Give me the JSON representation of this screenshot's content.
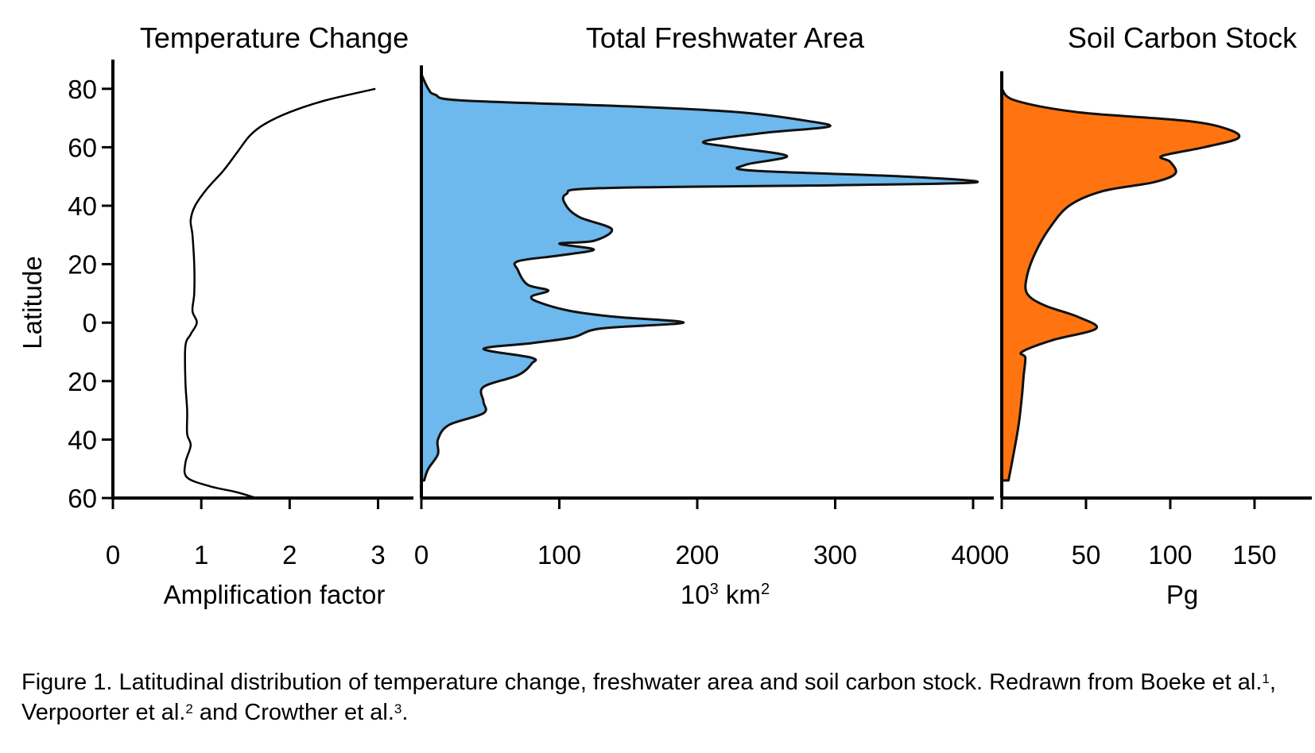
{
  "chart_data": {
    "y_axis": {
      "label": "Latitude",
      "lim": [
        -60,
        90
      ],
      "ticks": [
        80,
        60,
        40,
        20,
        0,
        -20,
        -40,
        -60
      ],
      "tick_labels": [
        "80",
        "60",
        "40",
        "20",
        "0",
        "20",
        "40",
        "60"
      ]
    },
    "panels": [
      {
        "type": "line",
        "title": "Temperature Change",
        "xlabel": "Amplification factor",
        "xlim": [
          0,
          3.4
        ],
        "xticks": [
          0,
          1,
          2,
          3
        ],
        "xtick_labels": [
          "0",
          "1",
          "2",
          "3"
        ],
        "fill": "none",
        "profile": [
          {
            "lat": 80,
            "x": 2.97
          },
          {
            "lat": 76,
            "x": 2.4
          },
          {
            "lat": 72,
            "x": 2.0
          },
          {
            "lat": 68,
            "x": 1.72
          },
          {
            "lat": 64,
            "x": 1.55
          },
          {
            "lat": 58,
            "x": 1.4
          },
          {
            "lat": 52,
            "x": 1.25
          },
          {
            "lat": 46,
            "x": 1.07
          },
          {
            "lat": 40,
            "x": 0.93
          },
          {
            "lat": 35,
            "x": 0.88
          },
          {
            "lat": 30,
            "x": 0.9
          },
          {
            "lat": 20,
            "x": 0.92
          },
          {
            "lat": 10,
            "x": 0.92
          },
          {
            "lat": 4,
            "x": 0.9
          },
          {
            "lat": 0,
            "x": 0.95
          },
          {
            "lat": -4,
            "x": 0.88
          },
          {
            "lat": -8,
            "x": 0.82
          },
          {
            "lat": -20,
            "x": 0.82
          },
          {
            "lat": -30,
            "x": 0.84
          },
          {
            "lat": -38,
            "x": 0.84
          },
          {
            "lat": -42,
            "x": 0.88
          },
          {
            "lat": -48,
            "x": 0.82
          },
          {
            "lat": -53,
            "x": 0.84
          },
          {
            "lat": -56,
            "x": 1.1
          },
          {
            "lat": -58,
            "x": 1.4
          },
          {
            "lat": -60,
            "x": 1.62
          }
        ]
      },
      {
        "type": "area",
        "title": "Total Freshwater Area",
        "xlabel": "10³  km²",
        "xlabel_base": "10",
        "xlabel_exp": "3",
        "xlabel_unit": "km",
        "xlabel_unit_exp": "2",
        "xlim": [
          0,
          415
        ],
        "xticks": [
          0,
          100,
          200,
          300,
          400
        ],
        "xtick_labels": [
          "0",
          "100",
          "200",
          "300",
          "400"
        ],
        "fill": "#6db8ec",
        "profile": [
          {
            "lat": 85,
            "x": 0
          },
          {
            "lat": 80,
            "x": 5
          },
          {
            "lat": 78,
            "x": 10
          },
          {
            "lat": 76,
            "x": 30
          },
          {
            "lat": 74,
            "x": 150
          },
          {
            "lat": 72,
            "x": 230
          },
          {
            "lat": 69,
            "x": 280
          },
          {
            "lat": 67,
            "x": 295
          },
          {
            "lat": 65,
            "x": 250
          },
          {
            "lat": 62,
            "x": 205
          },
          {
            "lat": 60,
            "x": 225
          },
          {
            "lat": 57,
            "x": 265
          },
          {
            "lat": 54,
            "x": 235
          },
          {
            "lat": 52,
            "x": 240
          },
          {
            "lat": 50,
            "x": 350
          },
          {
            "lat": 48,
            "x": 402
          },
          {
            "lat": 47,
            "x": 300
          },
          {
            "lat": 46,
            "x": 130
          },
          {
            "lat": 44,
            "x": 105
          },
          {
            "lat": 40,
            "x": 105
          },
          {
            "lat": 36,
            "x": 115
          },
          {
            "lat": 32,
            "x": 138
          },
          {
            "lat": 28,
            "x": 125
          },
          {
            "lat": 27,
            "x": 100
          },
          {
            "lat": 25,
            "x": 125
          },
          {
            "lat": 23,
            "x": 100
          },
          {
            "lat": 21,
            "x": 70
          },
          {
            "lat": 18,
            "x": 70
          },
          {
            "lat": 13,
            "x": 77
          },
          {
            "lat": 11,
            "x": 92
          },
          {
            "lat": 9,
            "x": 80
          },
          {
            "lat": 7,
            "x": 85
          },
          {
            "lat": 4,
            "x": 108
          },
          {
            "lat": 2,
            "x": 140
          },
          {
            "lat": 0,
            "x": 190
          },
          {
            "lat": -2,
            "x": 130
          },
          {
            "lat": -5,
            "x": 110
          },
          {
            "lat": -7,
            "x": 80
          },
          {
            "lat": -9,
            "x": 45
          },
          {
            "lat": -12,
            "x": 80
          },
          {
            "lat": -14,
            "x": 80
          },
          {
            "lat": -18,
            "x": 70
          },
          {
            "lat": -22,
            "x": 45
          },
          {
            "lat": -27,
            "x": 45
          },
          {
            "lat": -31,
            "x": 45
          },
          {
            "lat": -35,
            "x": 20
          },
          {
            "lat": -40,
            "x": 12
          },
          {
            "lat": -45,
            "x": 12
          },
          {
            "lat": -50,
            "x": 5
          },
          {
            "lat": -54,
            "x": 2
          }
        ]
      },
      {
        "type": "area",
        "title": "Soil Carbon Stock",
        "xlabel": "Pg",
        "xlim": [
          0,
          184
        ],
        "xticks": [
          0,
          50,
          100,
          150
        ],
        "xtick_labels": [
          "0",
          "50",
          "100",
          "150"
        ],
        "fill": "#ff7410",
        "profile": [
          {
            "lat": 80,
            "x": 0
          },
          {
            "lat": 76,
            "x": 8
          },
          {
            "lat": 72,
            "x": 45
          },
          {
            "lat": 69,
            "x": 110
          },
          {
            "lat": 66,
            "x": 135
          },
          {
            "lat": 63,
            "x": 140
          },
          {
            "lat": 60,
            "x": 120
          },
          {
            "lat": 57,
            "x": 95
          },
          {
            "lat": 55,
            "x": 100
          },
          {
            "lat": 51,
            "x": 103
          },
          {
            "lat": 48,
            "x": 90
          },
          {
            "lat": 45,
            "x": 60
          },
          {
            "lat": 40,
            "x": 40
          },
          {
            "lat": 32,
            "x": 28
          },
          {
            "lat": 24,
            "x": 20
          },
          {
            "lat": 16,
            "x": 15
          },
          {
            "lat": 10,
            "x": 15
          },
          {
            "lat": 6,
            "x": 25
          },
          {
            "lat": 2,
            "x": 45
          },
          {
            "lat": -2,
            "x": 56
          },
          {
            "lat": -6,
            "x": 30
          },
          {
            "lat": -10,
            "x": 12
          },
          {
            "lat": -12,
            "x": 14
          },
          {
            "lat": -18,
            "x": 13
          },
          {
            "lat": -25,
            "x": 12
          },
          {
            "lat": -35,
            "x": 10
          },
          {
            "lat": -45,
            "x": 7
          },
          {
            "lat": -54,
            "x": 4
          }
        ]
      }
    ]
  },
  "caption": {
    "prefix": "Figure 1. Latitudinal distribution of temperature change, freshwater area and soil carbon stock. Redrawn from Boeke et al.",
    "ref1": "1",
    "mid1": ", Verpoorter et al.",
    "ref2": "2",
    "mid2": " and Crowther et al.",
    "ref3": "3",
    "suffix": "."
  }
}
